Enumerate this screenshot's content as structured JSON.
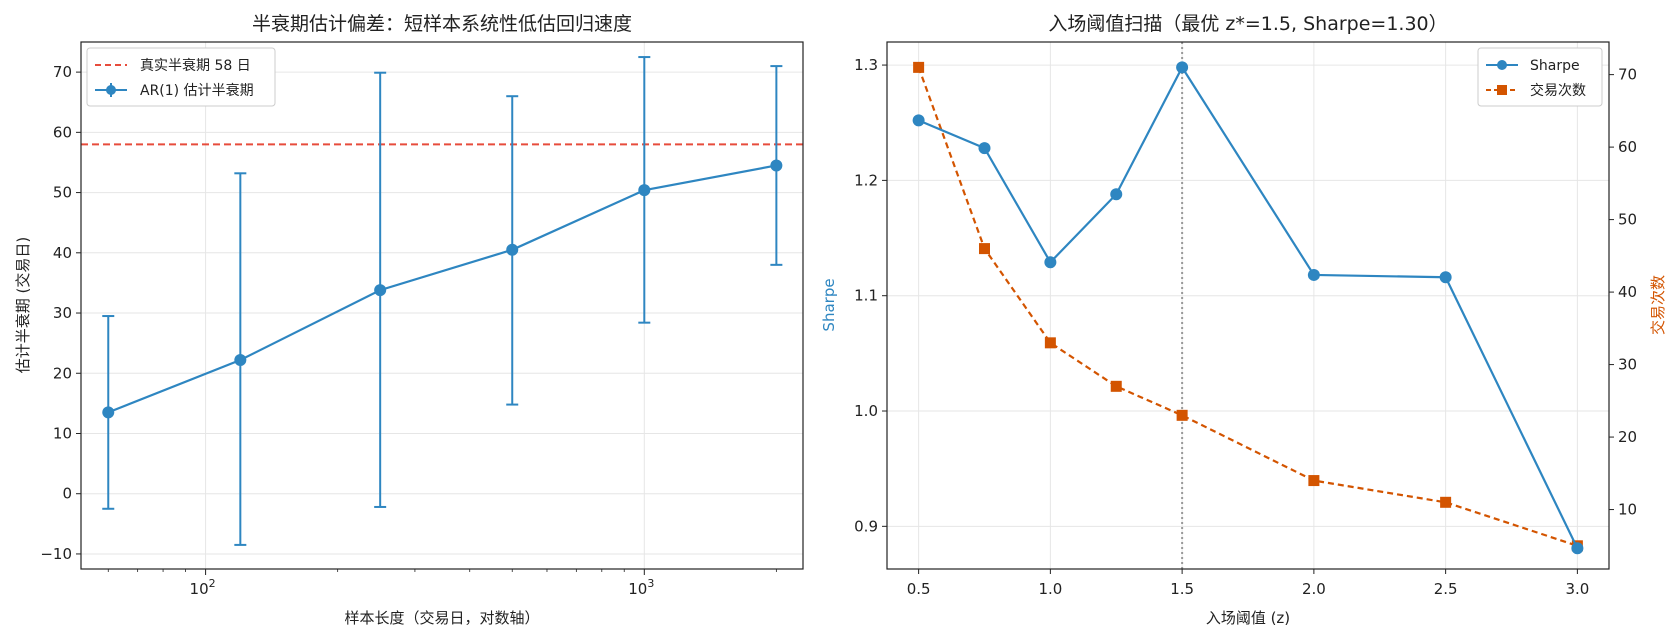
{
  "chart_data": [
    {
      "type": "line",
      "title": "半衰期估计偏差：短样本系统性低估回归速度",
      "xlabel": "样本长度（交易日，对数轴）",
      "ylabel": "估计半衰期 (交易日)",
      "xscale": "log",
      "xlim": [
        52,
        2300
      ],
      "ylim": [
        -12.5,
        75
      ],
      "yticks": [
        -10,
        0,
        10,
        20,
        30,
        40,
        50,
        60,
        70
      ],
      "xtick_labels": [
        {
          "value": 100,
          "base": "10",
          "exp": "2"
        },
        {
          "value": 1000,
          "base": "10",
          "exp": "3"
        }
      ],
      "grid": true,
      "legend_position": "top-left",
      "hline": {
        "name": "真实半衰期 58 日",
        "y": 58,
        "color": "#e74c3c",
        "style": "dashed"
      },
      "series": [
        {
          "name": "AR(1) 估计半衰期",
          "color": "#2e86c1",
          "x": [
            60,
            120,
            250,
            500,
            1000,
            2000
          ],
          "y": [
            13.5,
            22.2,
            33.8,
            40.5,
            50.4,
            54.5
          ],
          "err_low": [
            -2.5,
            -8.5,
            -2.2,
            14.8,
            28.4,
            38.0
          ],
          "err_high": [
            29.5,
            53.2,
            69.9,
            66.0,
            72.5,
            71.0
          ]
        }
      ]
    },
    {
      "type": "line",
      "title": "入场阈值扫描（最优 z*=1.5, Sharpe=1.30）",
      "xlabel": "入场阈值 (z)",
      "ylabel": "Sharpe",
      "ylabel_right": "交易次数",
      "xlim": [
        0.38,
        3.12
      ],
      "xticks": [
        0.5,
        1.0,
        1.5,
        2.0,
        2.5,
        3.0
      ],
      "ylim": [
        0.863,
        1.32
      ],
      "yticks": [
        0.9,
        1.0,
        1.1,
        1.2,
        1.3
      ],
      "ylim_right": [
        1.8,
        74.5
      ],
      "yticks_right": [
        10,
        20,
        30,
        40,
        50,
        60,
        70
      ],
      "grid": true,
      "legend_position": "top-right",
      "vline": {
        "x": 1.5,
        "color": "#999999",
        "style": "dotted"
      },
      "series": [
        {
          "name": "Sharpe",
          "axis": "left",
          "marker": "circle",
          "color": "#2e86c1",
          "x": [
            0.5,
            0.75,
            1.0,
            1.25,
            1.5,
            2.0,
            2.5,
            3.0
          ],
          "y": [
            1.252,
            1.228,
            1.129,
            1.188,
            1.298,
            1.118,
            1.116,
            0.881
          ]
        },
        {
          "name": "交易次数",
          "axis": "right",
          "marker": "square",
          "color": "#d35400",
          "x": [
            0.5,
            0.75,
            1.0,
            1.25,
            1.5,
            2.0,
            2.5,
            3.0
          ],
          "y": [
            71,
            46,
            33,
            27,
            23,
            14,
            11,
            5
          ]
        }
      ]
    }
  ]
}
